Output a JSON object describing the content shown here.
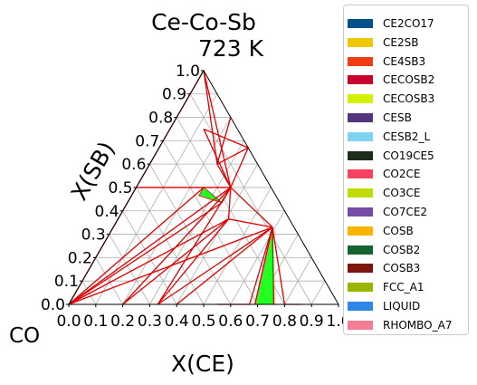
{
  "chart_data": {
    "type": "ternary-phase-diagram",
    "title": "Ce-Co-Sb",
    "subtitle": "723  K",
    "corner_label_bottom_left": "CO",
    "axis_labels": {
      "bottom": "X(CE)",
      "left": "X(SB)"
    },
    "ticks": [
      "0.0",
      "0.1",
      "0.2",
      "0.3",
      "0.4",
      "0.5",
      "0.6",
      "0.7",
      "0.8",
      "0.9",
      "1.0"
    ],
    "grid": true,
    "legend_position": "outside-right",
    "legend": [
      {
        "label": "CE2CO17",
        "color": "#00508c"
      },
      {
        "label": "CE2SB",
        "color": "#f0c800"
      },
      {
        "label": "CE4SB3",
        "color": "#f03c14"
      },
      {
        "label": "CECOSB2",
        "color": "#c8002d"
      },
      {
        "label": "CECOSB3",
        "color": "#d2f000"
      },
      {
        "label": "CESB",
        "color": "#55347b"
      },
      {
        "label": "CESB2_L",
        "color": "#7dd3f0"
      },
      {
        "label": "CO19CE5",
        "color": "#1e2d19"
      },
      {
        "label": "CO2CE",
        "color": "#fa415f"
      },
      {
        "label": "CO3CE",
        "color": "#bedc00"
      },
      {
        "label": "CO7CE2",
        "color": "#784ba5"
      },
      {
        "label": "COSB",
        "color": "#fab400"
      },
      {
        "label": "COSB2",
        "color": "#146432"
      },
      {
        "label": "COSB3",
        "color": "#7d140f"
      },
      {
        "label": "FCC_A1",
        "color": "#9bb400"
      },
      {
        "label": "LIQUID",
        "color": "#2d87e6"
      },
      {
        "label": "RHOMBO_A7",
        "color": "#f57d91"
      }
    ],
    "tie_line_color": "#e00000",
    "two_phase_region_color": "#22ff22",
    "regions": [
      {
        "points": [
          [
            0.69,
            0.0
          ],
          [
            0.76,
            0.0
          ],
          [
            0.59,
            0.33
          ]
        ]
      },
      {
        "points": [
          [
            0.25,
            0.5
          ],
          [
            0.25,
            0.465
          ],
          [
            0.35,
            0.435
          ]
        ]
      }
    ],
    "tie_lines": [
      [
        [
          0.0,
          0.0
        ],
        [
          0.35,
          0.5
        ]
      ],
      [
        [
          0.0,
          0.0
        ],
        [
          0.41,
          0.365
        ]
      ],
      [
        [
          0.0,
          0.0
        ],
        [
          0.59,
          0.33
        ]
      ],
      [
        [
          0.0,
          0.0
        ],
        [
          0.25,
          0.5
        ]
      ],
      [
        [
          0.0,
          0.0
        ],
        [
          0.35,
          0.435
        ]
      ],
      [
        [
          0.2,
          0.0
        ],
        [
          0.35,
          0.5
        ]
      ],
      [
        [
          0.2,
          0.0
        ],
        [
          0.41,
          0.365
        ]
      ],
      [
        [
          0.33,
          0.0
        ],
        [
          0.41,
          0.365
        ]
      ],
      [
        [
          0.33,
          0.0
        ],
        [
          0.59,
          0.33
        ]
      ],
      [
        [
          0.4,
          0.0
        ],
        [
          0.59,
          0.33
        ]
      ],
      [
        [
          0.67,
          0.0
        ],
        [
          0.59,
          0.33
        ]
      ],
      [
        [
          0.69,
          0.0
        ],
        [
          0.59,
          0.33
        ]
      ],
      [
        [
          0.76,
          0.0
        ],
        [
          0.59,
          0.33
        ]
      ],
      [
        [
          0.8,
          0.0
        ],
        [
          0.59,
          0.33
        ]
      ],
      [
        [
          0.33,
          0.0
        ],
        [
          0.35,
          0.5
        ]
      ],
      [
        [
          0.41,
          0.365
        ],
        [
          0.59,
          0.33
        ]
      ],
      [
        [
          0.35,
          0.5
        ],
        [
          0.59,
          0.33
        ]
      ],
      [
        [
          0.35,
          0.5
        ],
        [
          0.41,
          0.365
        ]
      ],
      [
        [
          0.25,
          0.5
        ],
        [
          0.35,
          0.5
        ]
      ],
      [
        [
          0.35,
          0.435
        ],
        [
          0.35,
          0.5
        ]
      ],
      [
        [
          0.35,
          0.5
        ],
        [
          0.25,
          0.6
        ]
      ],
      [
        [
          0.35,
          0.5
        ],
        [
          0.33,
          0.67
        ]
      ],
      [
        [
          0.35,
          0.5
        ],
        [
          0.125,
          0.75
        ]
      ],
      [
        [
          0.35,
          0.5
        ],
        [
          0.0,
          1.0
        ]
      ],
      [
        [
          0.125,
          0.75
        ],
        [
          0.33,
          0.67
        ]
      ],
      [
        [
          0.25,
          0.6
        ],
        [
          0.0,
          1.0
        ]
      ],
      [
        [
          0.25,
          0.6
        ],
        [
          0.33,
          0.67
        ]
      ],
      [
        [
          0.25,
          0.6
        ],
        [
          0.2,
          0.8
        ]
      ],
      [
        [
          0.0,
          0.5
        ],
        [
          0.0,
          1.0
        ]
      ],
      [
        [
          0.0,
          0.5
        ],
        [
          0.25,
          0.5
        ]
      ],
      [
        [
          0.0,
          0.0
        ],
        [
          0.0,
          0.5
        ]
      ],
      [
        [
          0.55,
          0.0
        ],
        [
          0.67,
          0.0
        ]
      ],
      [
        [
          0.8,
          0.0
        ],
        [
          0.86,
          0.0
        ]
      ]
    ]
  }
}
